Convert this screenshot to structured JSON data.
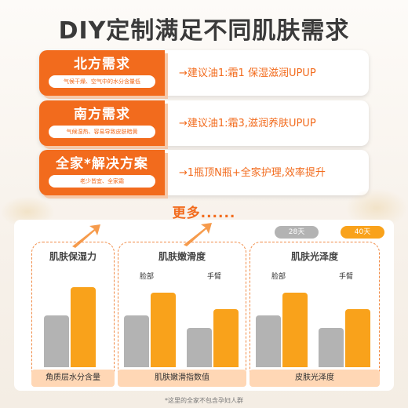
{
  "title": "DIY定制满足不同肌肤需求",
  "cards": [
    {
      "title": "北方需求",
      "note": "气候干燥、空气中的水分含量低",
      "advice": "→建议油1:霜1 保湿滋润UPUP"
    },
    {
      "title": "南方需求",
      "note": "气候湿热、容易导致皮肤暗黄",
      "advice": "→建议油1:霜3,滋润养肤UPUP"
    },
    {
      "title": "全家*解决方案",
      "note": "老少皆宜、全家霜",
      "advice": "→1瓶顶N瓶+全家护理,效率提升"
    }
  ],
  "more": "更多......",
  "legend": [
    {
      "label": "28天",
      "color": "#b3b3b3"
    },
    {
      "label": "40天",
      "color": "#f9a21b"
    }
  ],
  "chart_data": {
    "type": "bar",
    "note": "no axis values are printed; bar heights are relative estimates",
    "series_names": [
      "28天",
      "40天"
    ],
    "groups": [
      {
        "title": "肌肤保湿力",
        "xlabel": "角质层水分含量",
        "subcategories": [
          ""
        ],
        "values_28": [
          55
        ],
        "values_40": [
          85
        ]
      },
      {
        "title": "肌肤嫩滑度",
        "xlabel": "肌肤嫩滑指数值",
        "subcategories": [
          "脸部",
          "手臂"
        ],
        "values_28": [
          55,
          42
        ],
        "values_40": [
          79,
          62
        ]
      },
      {
        "title": "肌肤光泽度",
        "xlabel": "皮肤光泽度",
        "subcategories": [
          "脸部",
          "手臂"
        ],
        "values_28": [
          55,
          42
        ],
        "values_40": [
          79,
          62
        ]
      }
    ]
  },
  "footnote": "*这里的全家不包含孕妇人群"
}
